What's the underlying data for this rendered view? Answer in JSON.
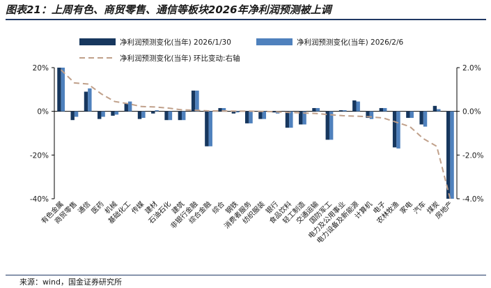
{
  "title": "图表21：上周有色、商贸零售、通信等板块2026年净利润预测被上调",
  "source": "来源：wind，国金证券研究所",
  "colors": {
    "series1": "#17375e",
    "series2": "#4f81bd",
    "line": "#c0a08a",
    "axis": "#000000"
  },
  "chart_data": {
    "type": "bar",
    "categories": [
      "有色金属",
      "商贸零售",
      "通信",
      "医药",
      "机械",
      "基础化工",
      "传媒",
      "建材",
      "石油石化",
      "建筑",
      "非银行金融",
      "综合金融",
      "综合",
      "钢铁",
      "消费者服务",
      "纺织服装",
      "银行",
      "食品饮料",
      "轻工制造",
      "交通运输",
      "国防军工",
      "电力及公用事业",
      "电力设备及新能源",
      "计算机",
      "电子",
      "农林牧渔",
      "家电",
      "汽车",
      "煤炭",
      "房地产"
    ],
    "series": [
      {
        "name": "净利润预测变化(当年) 2026/1/30",
        "axis": "left",
        "values": [
          20,
          -4,
          9,
          -3.5,
          -2,
          3.5,
          -3.5,
          -1,
          -4,
          -4,
          9.5,
          -16,
          1.5,
          -1,
          -5.5,
          -3.5,
          -0.5,
          -7.5,
          -6,
          1.5,
          -13,
          0.5,
          5,
          -3,
          1.5,
          -16.5,
          -3,
          -6,
          2.5,
          -40
        ]
      },
      {
        "name": "净利润预测变化(当年) 2026/2/6",
        "axis": "left",
        "values": [
          20,
          -2.5,
          10.5,
          -2.5,
          -1.5,
          4.5,
          -3,
          0.5,
          -4,
          -4,
          9.5,
          -16,
          1.5,
          -0.5,
          -5.5,
          -3.5,
          -1,
          -7.5,
          -6,
          1.5,
          -13,
          0.5,
          4.5,
          -3.5,
          1.5,
          -17,
          -3,
          -7,
          1,
          -40
        ]
      },
      {
        "name": "净利润预测变化(当年) 环比变动:右轴",
        "axis": "right",
        "type": "line",
        "values": [
          1.9,
          1.3,
          1.25,
          0.8,
          0.45,
          0.35,
          0.22,
          0.2,
          0.15,
          0.07,
          0.05,
          0.02,
          0.02,
          0.01,
          0.01,
          0.0,
          -0.02,
          -0.05,
          -0.07,
          -0.1,
          -0.15,
          -0.2,
          -0.22,
          -0.25,
          -0.3,
          -0.5,
          -0.7,
          -1.25,
          -1.6,
          -4.0
        ]
      }
    ],
    "yleft": {
      "range": [
        -40,
        20
      ],
      "ticks": [
        20,
        0,
        -20,
        -40
      ],
      "tick_labels": [
        "20%",
        "0%",
        "-20%",
        "-40%"
      ]
    },
    "yright": {
      "range": [
        -4.0,
        2.0
      ],
      "ticks": [
        2.0,
        0.0,
        -2.0,
        -4.0
      ],
      "tick_labels": [
        "2.0%",
        "0.0%",
        "-2.0%",
        "-4.0%"
      ]
    },
    "legend": {
      "position": "top"
    }
  }
}
